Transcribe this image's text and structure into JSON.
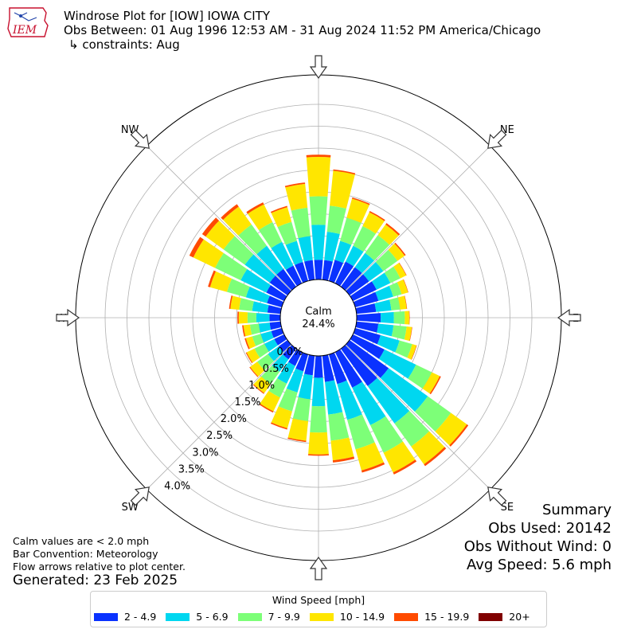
{
  "logo": {
    "text": "IEM"
  },
  "header": {
    "title": "Windrose Plot for [IOW] IOWA CITY",
    "obs_between": "Obs Between: 01 Aug 1996 12:53 AM - 31 Aug 2024 11:52 PM America/Chicago",
    "constraints": "↳ constraints: Aug"
  },
  "chart_data": {
    "type": "windrose",
    "directions": [
      "N",
      "NNE",
      "NE",
      "ENE",
      "E",
      "ESE",
      "SE",
      "SSE",
      "S",
      "SSW",
      "SW",
      "WSW",
      "W",
      "WNW",
      "NW",
      "NNW"
    ],
    "direction_labels": [
      "N",
      "NE",
      "E",
      "SE",
      "S",
      "SW",
      "W",
      "NW"
    ],
    "bar_directions_deg": [
      0,
      10,
      20,
      30,
      40,
      50,
      60,
      70,
      80,
      90,
      100,
      110,
      120,
      130,
      140,
      150,
      160,
      170,
      180,
      190,
      200,
      210,
      220,
      230,
      240,
      250,
      260,
      270,
      280,
      290,
      300,
      310,
      320,
      330,
      340,
      350
    ],
    "radial_ticks": [
      "0.0%",
      "0.5%",
      "1.0%",
      "1.5%",
      "2.0%",
      "2.5%",
      "3.0%",
      "3.5%",
      "4.0%"
    ],
    "radial_max": 4.0,
    "calm_label": "Calm",
    "calm_value": "24.4%",
    "speed_bins": [
      "2 - 4.9",
      "5 - 6.9",
      "7 - 9.9",
      "10 - 14.9",
      "15 - 19.9",
      "20+"
    ],
    "colors": [
      "#0a32ff",
      "#00d7f0",
      "#7dff78",
      "#ffe600",
      "#ff4b00",
      "#800000"
    ],
    "cumulative_percent": [
      [
        0.45,
        1.25,
        1.9,
        2.8,
        2.85,
        2.85
      ],
      [
        0.45,
        1.1,
        1.7,
        2.5,
        2.53,
        2.53
      ],
      [
        0.5,
        0.95,
        1.5,
        1.95,
        1.98,
        1.98
      ],
      [
        0.55,
        0.95,
        1.45,
        1.8,
        1.83,
        1.83
      ],
      [
        0.55,
        0.95,
        1.45,
        1.75,
        1.79,
        1.79
      ],
      [
        0.55,
        0.95,
        1.35,
        1.55,
        1.58,
        1.58
      ],
      [
        0.6,
        0.95,
        1.2,
        1.35,
        1.36,
        1.36
      ],
      [
        0.55,
        0.9,
        1.1,
        1.25,
        1.26,
        1.26
      ],
      [
        0.45,
        0.8,
        1.0,
        1.15,
        1.16,
        1.16
      ],
      [
        0.55,
        0.85,
        1.1,
        1.2,
        1.21,
        1.21
      ],
      [
        0.5,
        0.85,
        1.15,
        1.27,
        1.28,
        1.28
      ],
      [
        0.6,
        1.05,
        1.35,
        1.45,
        1.46,
        1.46
      ],
      [
        0.8,
        1.6,
        2.0,
        2.2,
        2.23,
        2.23
      ],
      [
        1.1,
        2.2,
        2.85,
        3.3,
        3.34,
        3.34
      ],
      [
        1.05,
        2.1,
        2.75,
        3.25,
        3.3,
        3.3
      ],
      [
        0.9,
        1.85,
        2.55,
        3.05,
        3.1,
        3.1
      ],
      [
        0.7,
        1.55,
        2.25,
        2.75,
        2.8,
        2.8
      ],
      [
        0.6,
        1.35,
        1.95,
        2.4,
        2.45,
        2.45
      ],
      [
        0.5,
        1.15,
        1.75,
        2.25,
        2.28,
        2.28
      ],
      [
        0.45,
        1.0,
        1.5,
        1.95,
        1.98,
        1.98
      ],
      [
        0.4,
        0.9,
        1.35,
        1.75,
        1.78,
        1.78
      ],
      [
        0.35,
        0.8,
        1.15,
        1.5,
        1.53,
        1.53
      ],
      [
        0.3,
        0.65,
        1.0,
        1.25,
        1.27,
        1.27
      ],
      [
        0.25,
        0.55,
        0.85,
        1.05,
        1.07,
        1.07
      ],
      [
        0.25,
        0.5,
        0.75,
        0.95,
        0.97,
        0.97
      ],
      [
        0.25,
        0.5,
        0.7,
        0.85,
        0.88,
        0.88
      ],
      [
        0.25,
        0.5,
        0.7,
        0.85,
        0.88,
        0.88
      ],
      [
        0.25,
        0.55,
        0.75,
        0.95,
        0.98,
        0.98
      ],
      [
        0.3,
        0.65,
        0.95,
        1.15,
        1.18,
        1.18
      ],
      [
        0.35,
        0.85,
        1.3,
        1.7,
        1.75,
        1.75
      ],
      [
        0.45,
        1.1,
        1.75,
        2.3,
        2.4,
        2.4
      ],
      [
        0.5,
        1.2,
        1.8,
        2.3,
        2.4,
        2.4
      ],
      [
        0.5,
        1.15,
        1.75,
        2.25,
        2.32,
        2.32
      ],
      [
        0.45,
        1.05,
        1.55,
        2.0,
        2.05,
        2.05
      ],
      [
        0.45,
        0.95,
        1.4,
        1.75,
        1.78,
        1.78
      ],
      [
        0.45,
        1.0,
        1.65,
        2.2,
        2.23,
        2.23
      ]
    ],
    "arrow_note": "Flow arrows relative to plot center"
  },
  "notes": {
    "line1": "Calm values are < 2.0 mph",
    "line2": "Bar Convention: Meteorology",
    "line3": "Flow arrows relative to plot center."
  },
  "generated": "Generated: 23 Feb 2025",
  "summary": {
    "title": "Summary",
    "obs_used": "Obs Used: 20142",
    "obs_without_wind": "Obs Without Wind: 0",
    "avg_speed": "Avg Speed: 5.6 mph"
  },
  "legend": {
    "title": "Wind Speed [mph]",
    "items": [
      "2 - 4.9",
      "5 - 6.9",
      "7 - 9.9",
      "10 - 14.9",
      "15 - 19.9",
      "20+"
    ]
  }
}
